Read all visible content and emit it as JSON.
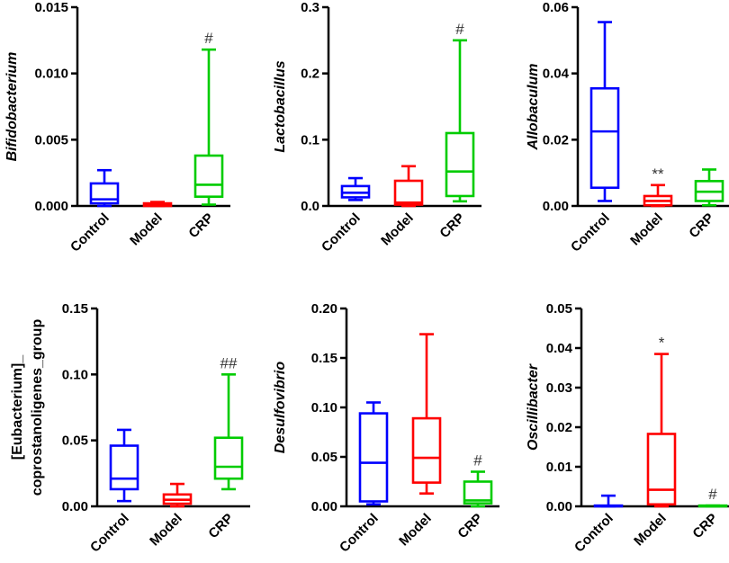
{
  "colors": {
    "Control": "#0000ff",
    "Model": "#ff0000",
    "CRP": "#00cc00"
  },
  "chart_data": [
    {
      "type": "box",
      "ylabel": "Bifidobacterium",
      "ylim": [
        0,
        0.015
      ],
      "ticks": [
        "0.000",
        "0.005",
        "0.010",
        "0.015"
      ],
      "categories": [
        "Control",
        "Model",
        "CRP"
      ],
      "boxes": [
        {
          "min": 0.0,
          "q1": 0.0002,
          "median": 0.0005,
          "q3": 0.0017,
          "max": 0.0027,
          "annotation": ""
        },
        {
          "min": 0.0,
          "q1": 0.0,
          "median": 0.0001,
          "q3": 0.0002,
          "max": 0.0003,
          "annotation": ""
        },
        {
          "min": 0.0001,
          "q1": 0.0007,
          "median": 0.0016,
          "q3": 0.0038,
          "max": 0.0118,
          "annotation": "#"
        }
      ]
    },
    {
      "type": "box",
      "ylabel": "Lactobacillus",
      "ylim": [
        0,
        0.3
      ],
      "ticks": [
        "0.0",
        "0.1",
        "0.2",
        "0.3"
      ],
      "categories": [
        "Control",
        "Model",
        "CRP"
      ],
      "boxes": [
        {
          "min": 0.009,
          "q1": 0.013,
          "median": 0.02,
          "q3": 0.03,
          "max": 0.042,
          "annotation": ""
        },
        {
          "min": 0.0,
          "q1": 0.002,
          "median": 0.005,
          "q3": 0.038,
          "max": 0.06,
          "annotation": ""
        },
        {
          "min": 0.007,
          "q1": 0.015,
          "median": 0.052,
          "q3": 0.11,
          "max": 0.25,
          "annotation": "#"
        }
      ]
    },
    {
      "type": "box",
      "ylabel": "Allobaculum",
      "ylim": [
        0,
        0.06
      ],
      "ticks": [
        "0.00",
        "0.02",
        "0.04",
        "0.06"
      ],
      "categories": [
        "Control",
        "Model",
        "CRP"
      ],
      "boxes": [
        {
          "min": 0.0015,
          "q1": 0.0055,
          "median": 0.0225,
          "q3": 0.0355,
          "max": 0.0555,
          "annotation": ""
        },
        {
          "min": 0.0,
          "q1": 0.0002,
          "median": 0.0015,
          "q3": 0.003,
          "max": 0.0063,
          "annotation": "**"
        },
        {
          "min": 0.0002,
          "q1": 0.0015,
          "median": 0.0043,
          "q3": 0.0075,
          "max": 0.011,
          "annotation": ""
        }
      ]
    },
    {
      "type": "box",
      "ylabel_lines": [
        "[Eubacterium]_",
        "coprostanoligenes_group"
      ],
      "ylim": [
        0,
        0.15
      ],
      "ticks": [
        "0.00",
        "0.05",
        "0.10",
        "0.15"
      ],
      "categories": [
        "Control",
        "Model",
        "CRP"
      ],
      "boxes": [
        {
          "min": 0.004,
          "q1": 0.013,
          "median": 0.021,
          "q3": 0.046,
          "max": 0.058,
          "annotation": ""
        },
        {
          "min": 0.0,
          "q1": 0.002,
          "median": 0.005,
          "q3": 0.009,
          "max": 0.017,
          "annotation": ""
        },
        {
          "min": 0.013,
          "q1": 0.021,
          "median": 0.03,
          "q3": 0.052,
          "max": 0.1,
          "annotation": "##"
        }
      ]
    },
    {
      "type": "box",
      "ylabel": "Desulfovibrio",
      "ylim": [
        0,
        0.2
      ],
      "ticks": [
        "0.00",
        "0.05",
        "0.10",
        "0.15",
        "0.20"
      ],
      "categories": [
        "Control",
        "Model",
        "CRP"
      ],
      "boxes": [
        {
          "min": 0.002,
          "q1": 0.005,
          "median": 0.044,
          "q3": 0.094,
          "max": 0.105,
          "annotation": ""
        },
        {
          "min": 0.013,
          "q1": 0.024,
          "median": 0.049,
          "q3": 0.089,
          "max": 0.174,
          "annotation": ""
        },
        {
          "min": 0.0,
          "q1": 0.003,
          "median": 0.006,
          "q3": 0.025,
          "max": 0.035,
          "annotation": "#"
        }
      ]
    },
    {
      "type": "box",
      "ylabel": "Oscillibacter",
      "ylim": [
        0,
        0.05
      ],
      "ticks": [
        "0.00",
        "0.01",
        "0.02",
        "0.03",
        "0.04",
        "0.05"
      ],
      "categories": [
        "Control",
        "Model",
        "CRP"
      ],
      "boxes": [
        {
          "min": 0.0,
          "q1": 0.0,
          "median": 0.0001,
          "q3": 0.0002,
          "max": 0.0027,
          "annotation": ""
        },
        {
          "min": 0.0,
          "q1": 0.0005,
          "median": 0.0042,
          "q3": 0.0183,
          "max": 0.0385,
          "annotation": "*"
        },
        {
          "min": 0.0,
          "q1": 0.0,
          "median": 0.0001,
          "q3": 0.0002,
          "max": 0.0002,
          "annotation": "#"
        }
      ]
    }
  ]
}
